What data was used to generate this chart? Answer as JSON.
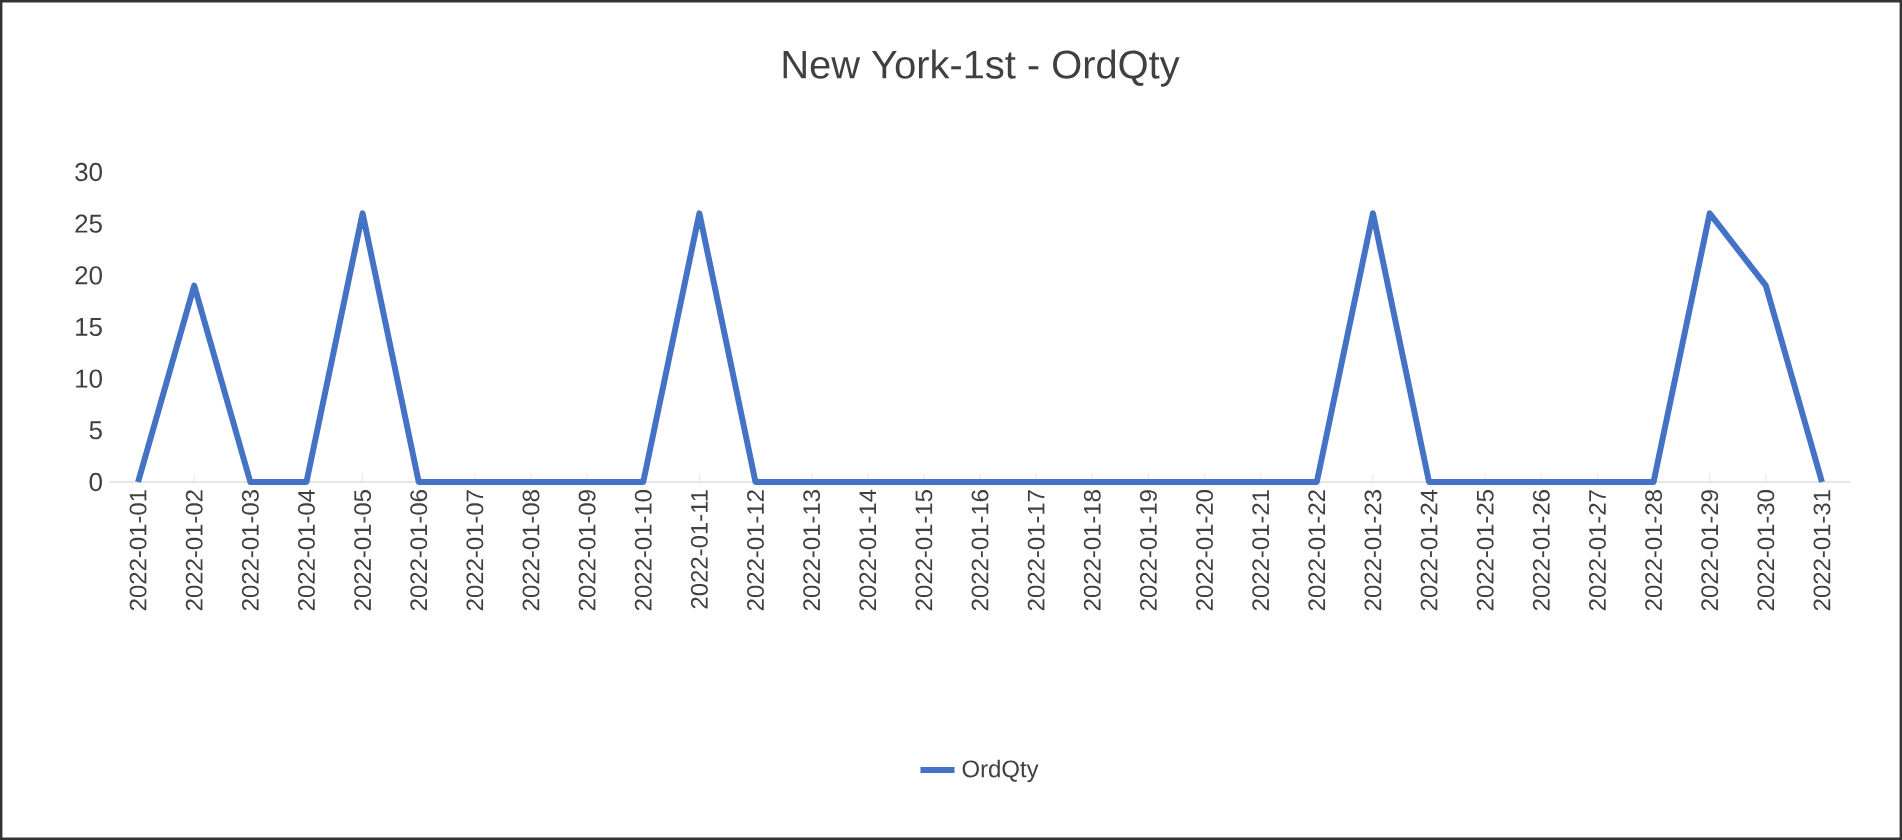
{
  "chart_data": {
    "type": "line",
    "title": "New York-1st - OrdQty",
    "categories": [
      "2022-01-01",
      "2022-01-02",
      "2022-01-03",
      "2022-01-04",
      "2022-01-05",
      "2022-01-06",
      "2022-01-07",
      "2022-01-08",
      "2022-01-09",
      "2022-01-10",
      "2022-01-11",
      "2022-01-12",
      "2022-01-13",
      "2022-01-14",
      "2022-01-15",
      "2022-01-16",
      "2022-01-17",
      "2022-01-18",
      "2022-01-19",
      "2022-01-20",
      "2022-01-21",
      "2022-01-22",
      "2022-01-23",
      "2022-01-24",
      "2022-01-25",
      "2022-01-26",
      "2022-01-27",
      "2022-01-28",
      "2022-01-29",
      "2022-01-30",
      "2022-01-31"
    ],
    "series": [
      {
        "name": "OrdQty",
        "color": "#4472c4",
        "values": [
          0,
          19,
          0,
          0,
          26,
          0,
          0,
          0,
          0,
          0,
          26,
          0,
          0,
          0,
          0,
          0,
          0,
          0,
          0,
          0,
          0,
          0,
          26,
          0,
          0,
          0,
          0,
          0,
          26,
          19,
          0
        ]
      }
    ],
    "ylim": [
      0,
      30
    ],
    "yticks": [
      0,
      5,
      10,
      15,
      20,
      25,
      30
    ],
    "legend": "bottom"
  }
}
